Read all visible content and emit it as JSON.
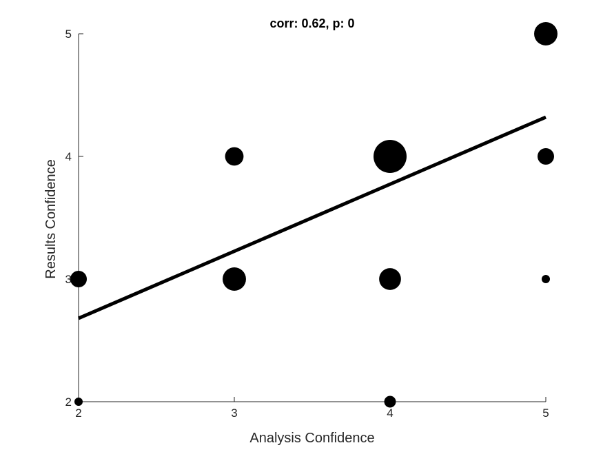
{
  "chart_data": {
    "type": "scatter",
    "title": "corr: 0.62, p: 0",
    "xlabel": "Analysis Confidence",
    "ylabel": "Results Confidence",
    "xlim": [
      2,
      5
    ],
    "ylim": [
      2,
      5
    ],
    "xticks": [
      2,
      3,
      4,
      5
    ],
    "yticks": [
      2,
      3,
      4,
      5
    ],
    "grid": false,
    "legend": "none",
    "marker_color": "#000000",
    "series": [
      {
        "points": [
          {
            "x": 2,
            "y": 2,
            "count": 1
          },
          {
            "x": 2,
            "y": 3,
            "count": 4
          },
          {
            "x": 3,
            "y": 3,
            "count": 8
          },
          {
            "x": 3,
            "y": 4,
            "count": 5
          },
          {
            "x": 4,
            "y": 2,
            "count": 2
          },
          {
            "x": 4,
            "y": 3,
            "count": 7
          },
          {
            "x": 4,
            "y": 4,
            "count": 16
          },
          {
            "x": 5,
            "y": 3,
            "count": 1
          },
          {
            "x": 5,
            "y": 4,
            "count": 4
          },
          {
            "x": 5,
            "y": 5,
            "count": 8
          }
        ]
      }
    ],
    "fit_line": {
      "x": [
        2,
        5
      ],
      "y": [
        2.68,
        4.32
      ]
    }
  }
}
